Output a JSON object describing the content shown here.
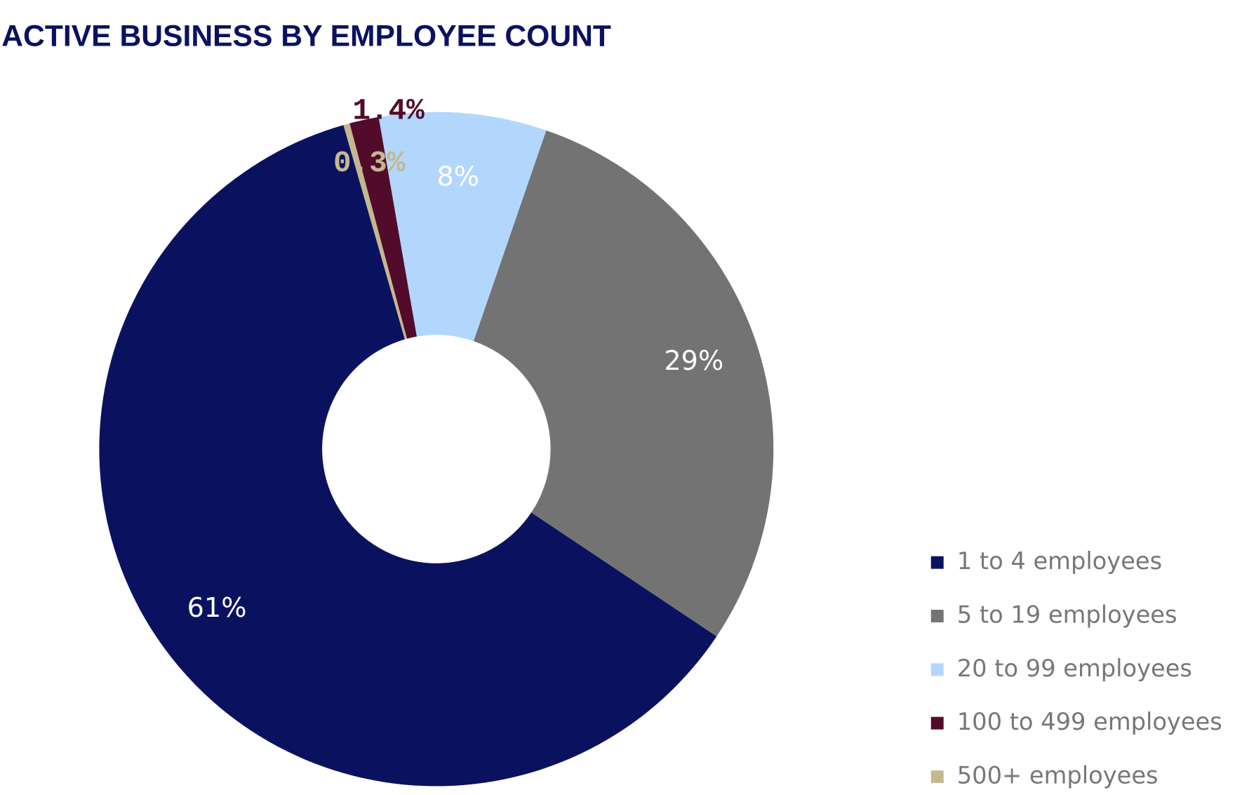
{
  "chart_data": {
    "type": "donut",
    "title": "ACTIVE BUSINESS BY EMPLOYEE COUNT",
    "categories": [
      "1 to 4 employees",
      "5 to 19 employees",
      "20 to 99 employees",
      "100 to 499 employees",
      "500+ employees"
    ],
    "values": [
      61,
      29,
      8,
      1.4,
      0.3
    ],
    "value_labels": [
      "61%",
      "29%",
      "8%",
      "1.4%",
      "0.3%"
    ],
    "colors": [
      "#0a1260",
      "#737373",
      "#b3d6fd",
      "#530b2c",
      "#c4b88f"
    ],
    "legend": "bottom-right"
  }
}
